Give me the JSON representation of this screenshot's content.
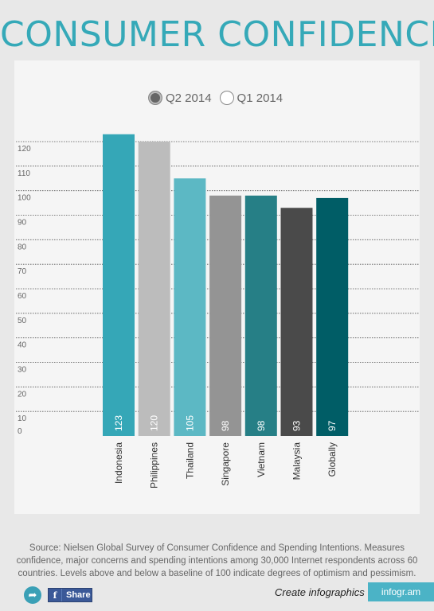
{
  "title": "CONSUMER CONFIDENCE",
  "legend": {
    "q2_label": "Q2 2014",
    "q1_label": "Q1 2014",
    "selected": "Q2 2014"
  },
  "source": "Source:  Nielsen Global Survey of Consumer Confidence and Spending Intentions. Measures confidence, major concerns and spending intentions among 30,000 Internet respondents across 60 countries. Levels above and below a baseline of 100 indicate degrees of optimism and pessimism.",
  "footer": {
    "share_label": "Share",
    "create_label": "Create infographics",
    "brand_label": "infogr.am"
  },
  "chart_data": {
    "type": "bar",
    "title": "CONSUMER CONFIDENCE",
    "xlabel": "",
    "ylabel": "",
    "ylim": [
      0,
      120
    ],
    "yticks": [
      0,
      10,
      20,
      30,
      40,
      50,
      60,
      70,
      80,
      90,
      100,
      110,
      120
    ],
    "grid": true,
    "legend_position": "top-center",
    "categories": [
      "Indonesia",
      "Philippines",
      "Thailand",
      "Singapore",
      "Vietnam",
      "Malaysia",
      "Globally"
    ],
    "series": [
      {
        "name": "Q2 2014",
        "values": [
          123,
          120,
          105,
          98,
          98,
          93,
          97
        ]
      }
    ],
    "colors": [
      "#35a7b7",
      "#bcbcbc",
      "#5cb8c4",
      "#949494",
      "#267f86",
      "#4a4a4a",
      "#005d66"
    ]
  }
}
